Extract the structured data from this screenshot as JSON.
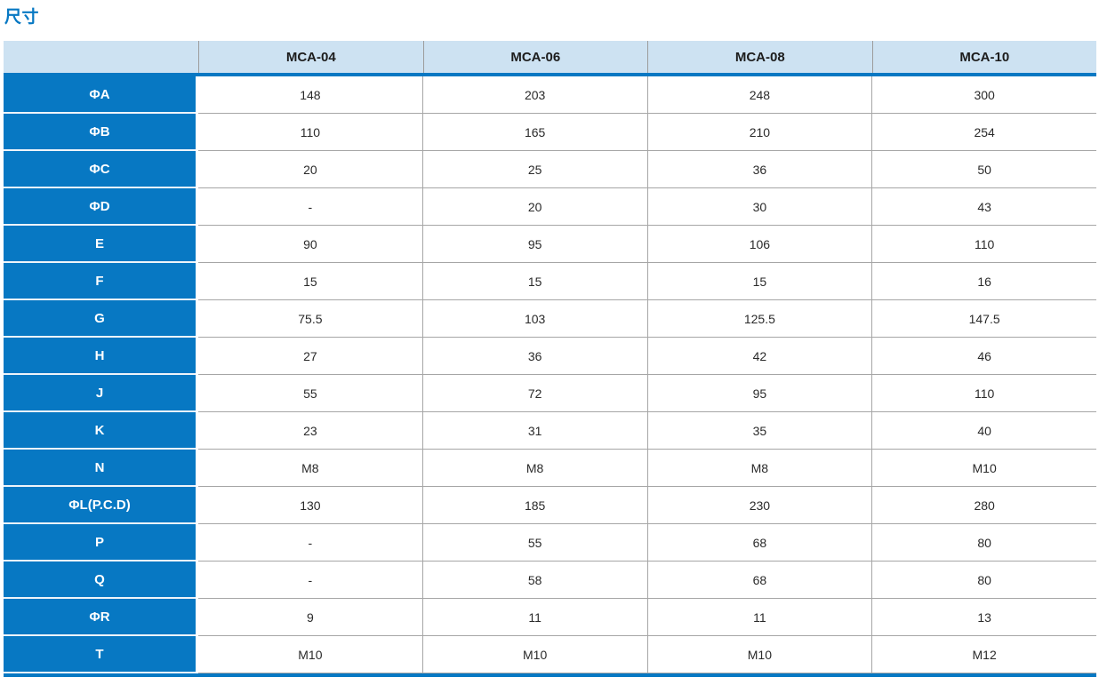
{
  "page": {
    "title": "尺寸"
  },
  "colors": {
    "accent_blue": "#0778c3",
    "header_background": "#cde2f2",
    "border_gray": "#a6a6a6",
    "row_header_text": "#ffffff",
    "cell_text": "#2a2a2a"
  },
  "table": {
    "columns": [
      "MCA-04",
      "MCA-06",
      "MCA-08",
      "MCA-10"
    ],
    "rows": [
      {
        "label": "ΦA",
        "values": [
          "148",
          "203",
          "248",
          "300"
        ]
      },
      {
        "label": "ΦB",
        "values": [
          "110",
          "165",
          "210",
          "254"
        ]
      },
      {
        "label": "ΦC",
        "values": [
          "20",
          "25",
          "36",
          "50"
        ]
      },
      {
        "label": "ΦD",
        "values": [
          "-",
          "20",
          "30",
          "43"
        ]
      },
      {
        "label": "E",
        "values": [
          "90",
          "95",
          "106",
          "110"
        ]
      },
      {
        "label": "F",
        "values": [
          "15",
          "15",
          "15",
          "16"
        ]
      },
      {
        "label": "G",
        "values": [
          "75.5",
          "103",
          "125.5",
          "147.5"
        ]
      },
      {
        "label": "H",
        "values": [
          "27",
          "36",
          "42",
          "46"
        ]
      },
      {
        "label": "J",
        "values": [
          "55",
          "72",
          "95",
          "110"
        ]
      },
      {
        "label": "K",
        "values": [
          "23",
          "31",
          "35",
          "40"
        ]
      },
      {
        "label": "N",
        "values": [
          "M8",
          "M8",
          "M8",
          "M10"
        ]
      },
      {
        "label": "ΦL(P.C.D)",
        "values": [
          "130",
          "185",
          "230",
          "280"
        ]
      },
      {
        "label": "P",
        "values": [
          "-",
          "55",
          "68",
          "80"
        ]
      },
      {
        "label": "Q",
        "values": [
          "-",
          "58",
          "68",
          "80"
        ]
      },
      {
        "label": "ΦR",
        "values": [
          "9",
          "11",
          "11",
          "13"
        ]
      },
      {
        "label": "T",
        "values": [
          "M10",
          "M10",
          "M10",
          "M12"
        ]
      }
    ]
  }
}
